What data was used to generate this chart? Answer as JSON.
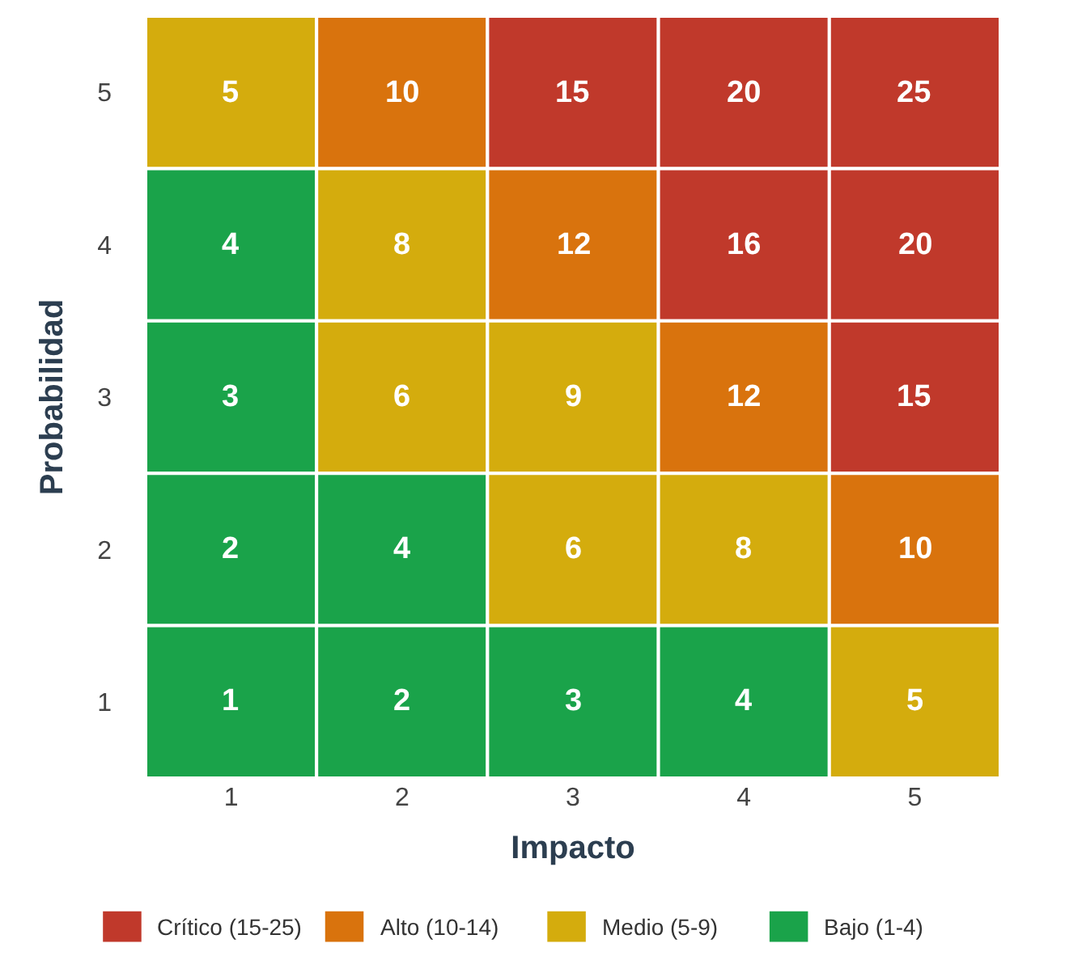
{
  "chart_data": {
    "type": "heatmap",
    "xlabel": "Impacto",
    "ylabel": "Probabilidad",
    "categories": [
      "1",
      "2",
      "3",
      "4",
      "5"
    ],
    "y_categories": [
      "5",
      "4",
      "3",
      "2",
      "1"
    ],
    "data_labels": true,
    "grid": false,
    "cells": [
      [
        5,
        10,
        15,
        20,
        25
      ],
      [
        4,
        8,
        12,
        16,
        20
      ],
      [
        3,
        6,
        9,
        12,
        15
      ],
      [
        2,
        4,
        6,
        8,
        10
      ],
      [
        1,
        2,
        3,
        4,
        5
      ]
    ],
    "colors": [
      [
        "#d4ac0d",
        "#d9730d",
        "#c0392b",
        "#c0392b",
        "#c0392b"
      ],
      [
        "#1aa34a",
        "#d4ac0d",
        "#d9730d",
        "#c0392b",
        "#c0392b"
      ],
      [
        "#1aa34a",
        "#d4ac0d",
        "#d4ac0d",
        "#d9730d",
        "#c0392b"
      ],
      [
        "#1aa34a",
        "#1aa34a",
        "#d4ac0d",
        "#d4ac0d",
        "#d9730d"
      ],
      [
        "#1aa34a",
        "#1aa34a",
        "#1aa34a",
        "#1aa34a",
        "#d4ac0d"
      ]
    ],
    "annotations": [
      "Crítico (15-25)",
      "Alto (10-14)",
      "Medio (5-9)",
      "Bajo (1-4)"
    ]
  }
}
